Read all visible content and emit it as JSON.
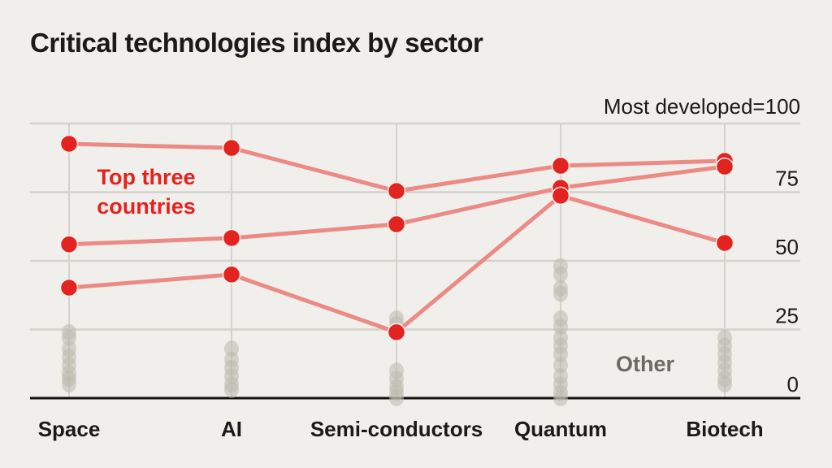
{
  "chart_data": {
    "type": "line",
    "title": "Critical technologies index by sector",
    "unit_label": "Most developed=100",
    "categories": [
      "Space",
      "AI",
      "Semi-conductors",
      "Quantum",
      "Biotech"
    ],
    "ylim": [
      0,
      100
    ],
    "yticks": [
      0,
      25,
      50,
      75,
      100
    ],
    "ytick_labels": [
      "0",
      "25",
      "50",
      "75",
      ""
    ],
    "grid": true,
    "annotations": {
      "top": "Top three countries",
      "other": "Other"
    },
    "colors": {
      "top": "#e3231f",
      "line": "#ec8a86",
      "other": "#b9b9ae",
      "grid": "#d3d2cd"
    },
    "series": [
      {
        "values": [
          92.6,
          91.1,
          75.4,
          84.6,
          86.4
        ]
      },
      {
        "values": [
          56,
          58.3,
          63.3,
          76.6,
          84.3
        ]
      },
      {
        "values": [
          40.2,
          45,
          24,
          73.7,
          56.5
        ]
      }
    ],
    "other": [
      [
        24,
        22,
        18,
        15,
        12,
        9,
        7,
        5
      ],
      [
        18,
        14,
        11,
        8,
        5,
        3
      ],
      [
        29,
        27,
        24,
        10,
        7,
        4,
        2,
        0
      ],
      [
        48,
        45,
        40,
        38,
        29,
        26,
        22,
        19,
        16,
        12,
        8,
        5,
        2,
        0
      ],
      [
        22,
        19,
        16,
        13,
        10,
        7,
        5
      ]
    ]
  }
}
